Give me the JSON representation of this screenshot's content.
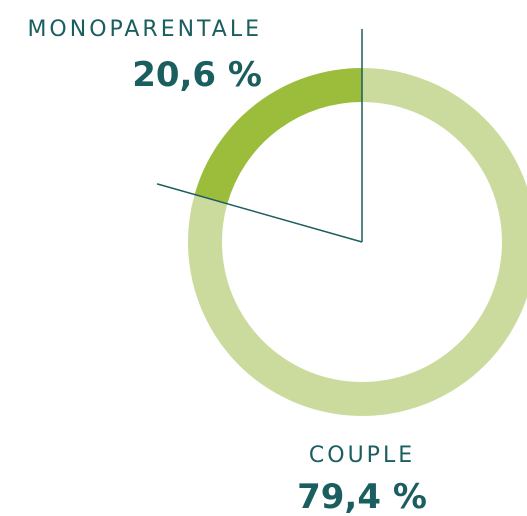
{
  "chart_data": {
    "type": "donut",
    "categories": [
      "MONOPARENTALE",
      "COUPLE"
    ],
    "values": [
      20.6,
      79.4
    ],
    "value_labels": [
      "20,6 %",
      "79,4 %"
    ],
    "colors": [
      "#9bbd3b",
      "#cbdb9d"
    ]
  }
}
